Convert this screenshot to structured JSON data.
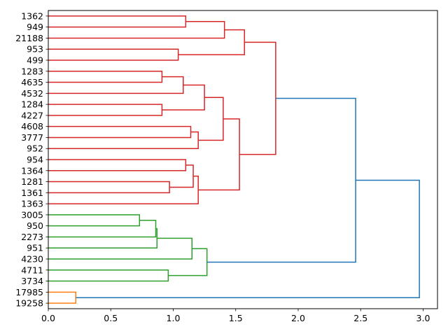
{
  "chart_data": {
    "type": "dendrogram",
    "orientation": "left",
    "xlim": [
      0,
      3.115
    ],
    "x_ticks": [
      "0.0",
      "0.5",
      "1.0",
      "1.5",
      "2.0",
      "2.5",
      "3.0"
    ],
    "x_tick_values": [
      0,
      0.5,
      1.0,
      1.5,
      2.0,
      2.5,
      3.0
    ],
    "leaves": [
      "1362",
      "949",
      "21188",
      "953",
      "499",
      "1283",
      "4635",
      "4532",
      "1284",
      "4227",
      "4608",
      "3777",
      "952",
      "954",
      "1364",
      "1281",
      "1361",
      "1363",
      "3005",
      "950",
      "2273",
      "951",
      "4230",
      "4711",
      "3734",
      "17985",
      "19258"
    ],
    "colors": {
      "red": "#d62728",
      "green": "#2ca02c",
      "orange": "#ff7f0e",
      "blue": "#1f77b4"
    },
    "merges": [
      {
        "a": "L0",
        "b": "L1",
        "height": 1.1,
        "color": "red"
      },
      {
        "a": "N0",
        "b": "L2",
        "height": 1.41,
        "color": "red"
      },
      {
        "a": "L3",
        "b": "L4",
        "height": 1.04,
        "color": "red"
      },
      {
        "a": "N1",
        "b": "N2",
        "height": 1.57,
        "color": "red"
      },
      {
        "a": "L5",
        "b": "L6",
        "height": 0.91,
        "color": "red"
      },
      {
        "a": "N4",
        "b": "L7",
        "height": 1.08,
        "color": "red"
      },
      {
        "a": "L8",
        "b": "L9",
        "height": 0.91,
        "color": "red"
      },
      {
        "a": "N5",
        "b": "N6",
        "height": 1.25,
        "color": "red"
      },
      {
        "a": "L10",
        "b": "L11",
        "height": 1.14,
        "color": "red"
      },
      {
        "a": "N8",
        "b": "L12",
        "height": 1.2,
        "color": "red"
      },
      {
        "a": "N7",
        "b": "N9",
        "height": 1.4,
        "color": "red"
      },
      {
        "a": "L13",
        "b": "L14",
        "height": 1.1,
        "color": "red"
      },
      {
        "a": "L15",
        "b": "L16",
        "height": 0.97,
        "color": "red"
      },
      {
        "a": "N11",
        "b": "N12",
        "height": 1.16,
        "color": "red"
      },
      {
        "a": "N13",
        "b": "L17",
        "height": 1.2,
        "color": "red"
      },
      {
        "a": "N10",
        "b": "N14",
        "height": 1.53,
        "color": "red"
      },
      {
        "a": "N3",
        "b": "N15",
        "height": 1.82,
        "color": "red"
      },
      {
        "a": "L18",
        "b": "L19",
        "height": 0.73,
        "color": "green"
      },
      {
        "a": "N17",
        "b": "L20",
        "height": 0.86,
        "color": "green"
      },
      {
        "a": "N18",
        "b": "L21",
        "height": 0.87,
        "color": "green"
      },
      {
        "a": "N19",
        "b": "L22",
        "height": 1.15,
        "color": "green"
      },
      {
        "a": "L23",
        "b": "L24",
        "height": 0.96,
        "color": "green"
      },
      {
        "a": "N20",
        "b": "N21",
        "height": 1.27,
        "color": "green"
      },
      {
        "a": "N16",
        "b": "N22",
        "height": 2.46,
        "color": "blue"
      },
      {
        "a": "L25",
        "b": "L26",
        "height": 0.22,
        "color": "orange"
      },
      {
        "a": "N23",
        "b": "N24",
        "height": 2.97,
        "color": "blue"
      }
    ]
  }
}
